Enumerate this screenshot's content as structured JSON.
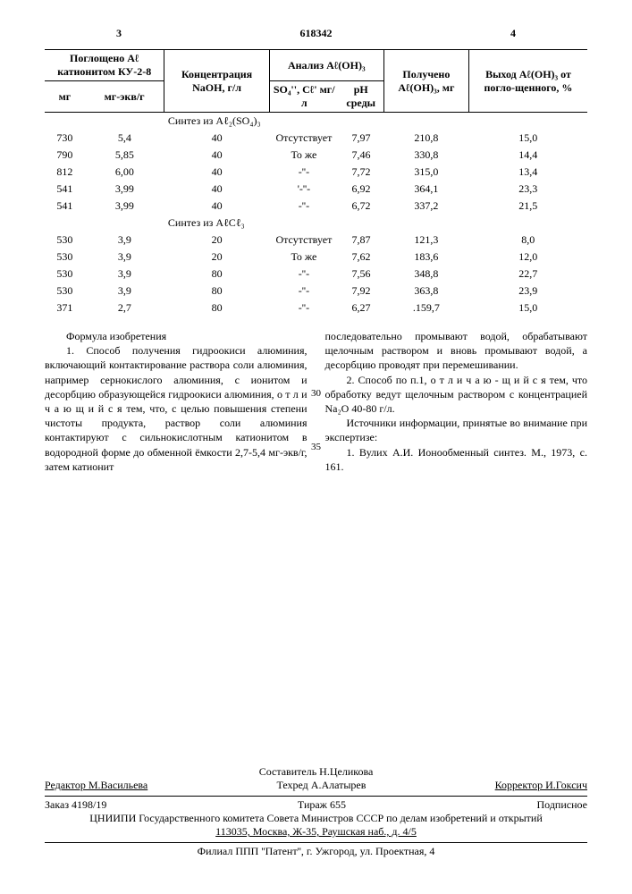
{
  "page_left": "3",
  "doc_number": "618342",
  "page_right": "4",
  "table": {
    "headers": {
      "h1": "Поглощено Aℓ катионитом КУ-2-8",
      "h1a": "мг",
      "h1b": "мг-экв/г",
      "h2": "Концентрация NaOH, г/л",
      "h3": "Анализ Aℓ(OH)₃",
      "h3a": "SO₄'', Cℓ' мг/л",
      "h3b": "pH среды",
      "h4": "Получено Aℓ(OH)₃, мг",
      "h5": "Выход Aℓ(OH)₃ от погло-щенного, %"
    },
    "section1": "Синтез из Aℓ₂(SO₄)₃",
    "section2": "Синтез из AℓCℓ₃",
    "rows1": [
      [
        "730",
        "5,4",
        "40",
        "Отсутствует",
        "7,97",
        "210,8",
        "15,0"
      ],
      [
        "790",
        "5,85",
        "40",
        "То же",
        "7,46",
        "330,8",
        "14,4"
      ],
      [
        "812",
        "6,00",
        "40",
        "-''-",
        "7,72",
        "315,0",
        "13,4"
      ],
      [
        "541",
        "3,99",
        "40",
        "'-''-",
        "6,92",
        "364,1",
        "23,3"
      ],
      [
        "541",
        "3,99",
        "40",
        "-''-",
        "6,72",
        "337,2",
        "21,5"
      ]
    ],
    "rows2": [
      [
        "530",
        "3,9",
        "20",
        "Отсутствует",
        "7,87",
        "121,3",
        "8,0"
      ],
      [
        "530",
        "3,9",
        "20",
        "То же",
        "7,62",
        "183,6",
        "12,0"
      ],
      [
        "530",
        "3,9",
        "80",
        "-''-",
        "7,56",
        "348,8",
        "22,7"
      ],
      [
        "530",
        "3,9",
        "80",
        "-''-",
        "7,92",
        "363,8",
        "23,9"
      ],
      [
        "371",
        "2,7",
        "80",
        "-''-",
        "6,27",
        ".159,7",
        "15,0"
      ]
    ]
  },
  "ln30": "30",
  "ln35": "35",
  "formula_title": "Формула изобретения",
  "para1": "1. Способ получения гидроокиси алюминия, включающий контактирование раствора соли алюминия, например сернокислого алюминия, с ионитом и десорбцию образующейся гидроокиси алюминия, о т л и ч а ю щ и й с я тем, что, с целью повышения степени чистоты продукта, раствор соли алюминия контактируют с сильнокислотным катионитом в водородной форме до обменной ёмкости 2,7-5,4 мг-экв/г, затем катионит",
  "para2": "последовательно промывают водой, обрабатывают щелочным раствором и вновь промывают водой, а десорбцию проводят при перемешивании.",
  "para3": "2. Способ по п.1, о т л и ч а ю - щ и й с я тем, что обработку ведут щелочным раствором с концентрацией Na₂O 40-80 г/л.",
  "para4": "Источники информации, принятые во внимание при экспертизе:",
  "para5": "1. Вулих А.И. Ионообменный синтез. М., 1973, с. 161.",
  "footer": {
    "compiler": "Составитель Н.Целикова",
    "editor": "Редактор М.Васильева",
    "techred": "Техред А.Алатырев",
    "korrektor": "Корректор И.Гоксич",
    "zakaz": "Заказ 4198/19",
    "tirazh": "Тираж 655",
    "podpisnoe": "Подписное",
    "org": "ЦНИИПИ Государственного комитета Совета Министров СССР по делам изобретений и открытий",
    "addr": "113035, Москва, Ж-35, Раушская наб., д. 4/5",
    "filial": "Филиал ППП ''Патент'', г. Ужгород, ул. Проектная, 4"
  }
}
